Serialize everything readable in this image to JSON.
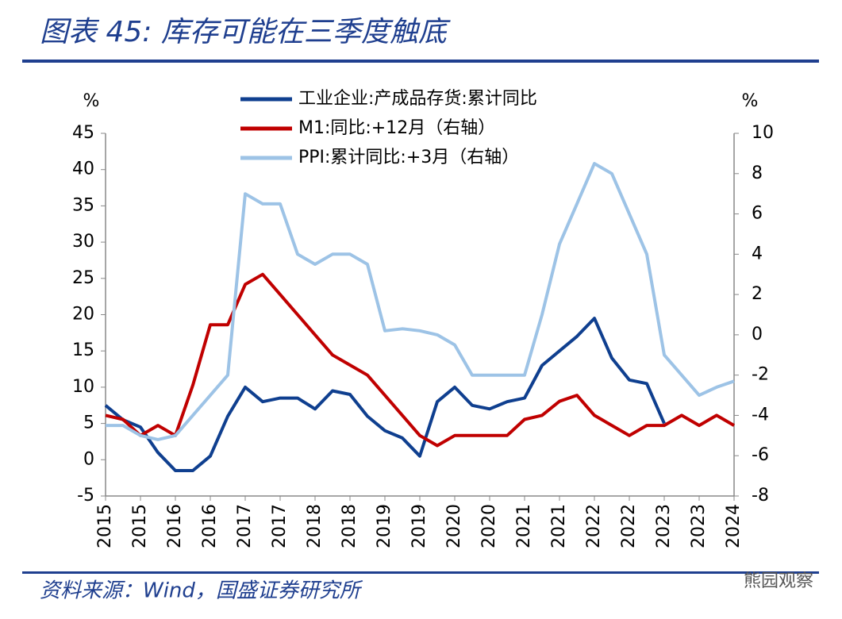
{
  "title": "图表 45: 库存可能在三季度触底",
  "source": "资料来源：Wind，国盛证券研究所",
  "watermark": "熊园观察",
  "chart_data": {
    "type": "line",
    "y_unit": "%",
    "y2_unit": "%",
    "categories": [
      "2015",
      null,
      "2015",
      null,
      "2016",
      null,
      "2016",
      null,
      "2017",
      null,
      "2017",
      null,
      "2018",
      null,
      "2018",
      null,
      "2019",
      null,
      "2019",
      null,
      "2020",
      null,
      "2020",
      null,
      "2021",
      null,
      "2021",
      null,
      "2022",
      null,
      "2022",
      null,
      "2023",
      null,
      "2023",
      null,
      "2024"
    ],
    "ylim": [
      -5,
      45
    ],
    "yticks": [
      -5,
      0,
      5,
      10,
      15,
      20,
      25,
      30,
      35,
      40,
      45
    ],
    "y2lim": [
      -8,
      10
    ],
    "y2ticks": [
      -8,
      -6,
      -4,
      -2,
      0,
      2,
      4,
      6,
      8,
      10
    ],
    "series": [
      {
        "name": "工业企业:产成品存货:累计同比",
        "color": "#0f3f8f",
        "axis": "y",
        "values": [
          7.5,
          5.5,
          4.5,
          1,
          -1.5,
          -1.5,
          0.5,
          6,
          10,
          8,
          8.5,
          8.5,
          7,
          9.5,
          9,
          6,
          4,
          3,
          0.5,
          8,
          10,
          7.5,
          7,
          8,
          8.5,
          13,
          15,
          17,
          19.5,
          14,
          11,
          10.5,
          5,
          null,
          null,
          null,
          null
        ]
      },
      {
        "name": "M1:同比:+12月（右轴）",
        "color": "#c00000",
        "axis": "y2",
        "values": [
          -4,
          -4.2,
          -5,
          -4.5,
          -5,
          -2.5,
          0.5,
          0.5,
          2.5,
          3,
          2,
          1,
          0,
          -1,
          -1.5,
          -2,
          -3,
          -4,
          -5,
          -5.5,
          -5,
          -5,
          -5,
          -5,
          -4.2,
          -4,
          -3.3,
          -3,
          -4,
          -4.5,
          -5,
          -4.5,
          -4.5,
          -4,
          -4.5,
          -4,
          -4.5
        ]
      },
      {
        "name": "PPI:累计同比:+3月（右轴）",
        "color": "#9dc3e6",
        "axis": "y2",
        "values": [
          -4.5,
          -4.5,
          -5,
          -5.2,
          -5,
          -4,
          -3,
          -2,
          7,
          6.5,
          6.5,
          4,
          3.5,
          4,
          4,
          3.5,
          0.2,
          0.3,
          0.2,
          0,
          -0.5,
          -2,
          -2,
          -2,
          -2,
          1,
          4.5,
          6.5,
          8.5,
          8,
          6,
          4,
          -1,
          -2,
          -3,
          -2.6,
          -2.3
        ]
      }
    ]
  }
}
